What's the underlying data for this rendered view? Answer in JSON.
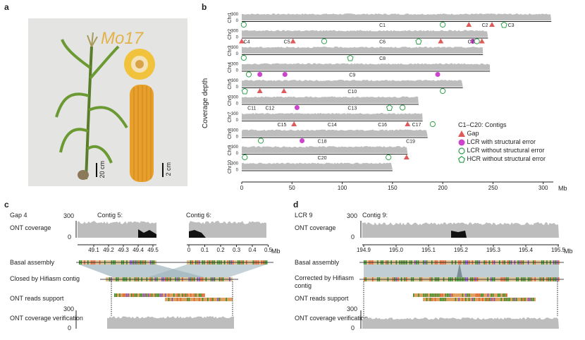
{
  "panels": {
    "a": "a",
    "b": "b",
    "c": "c",
    "d": "d"
  },
  "panel_a": {
    "logo_text": "Mo17",
    "scale_plant": "20 cm",
    "scale_ear": "2 cm"
  },
  "panel_b": {
    "ylabel": "Coverage depth",
    "xunit": "Mb",
    "yticks": [
      "300",
      "0"
    ],
    "xticks": [
      "0",
      "50",
      "100",
      "150",
      "200",
      "250",
      "300"
    ],
    "chromosomes": [
      "Chr1",
      "Chr2",
      "Chr3",
      "Chr4",
      "Chr5",
      "Chr6",
      "Chr7",
      "Chr8",
      "Chr9",
      "Chr10"
    ],
    "contigs": [
      "C1",
      "C2",
      "C3",
      "C4",
      "C5",
      "C6",
      "C7",
      "C8",
      "C9",
      "C10",
      "C11",
      "C12",
      "C13",
      "C14",
      "C15",
      "C16",
      "C17",
      "C18",
      "C19",
      "C20"
    ],
    "legend": {
      "title": "C1–C20: Contigs",
      "items": [
        "Gap",
        "LCR with structural error",
        "LCR without structural error",
        "HCR without structural error"
      ]
    },
    "marker_numbers": [
      "1",
      "2",
      "3",
      "4",
      "5",
      "6",
      "7",
      "8",
      "9",
      "10"
    ]
  },
  "chart_data": {
    "type": "bar",
    "title": "",
    "xlabel": "",
    "ylabel": "Coverage depth",
    "xunit": "Mb",
    "xlim": [
      0,
      310
    ],
    "ylim": [
      0,
      300
    ],
    "categories": [
      "Chr1",
      "Chr2",
      "Chr3",
      "Chr4",
      "Chr5",
      "Chr6",
      "Chr7",
      "Chr8",
      "Chr9",
      "Chr10"
    ],
    "lengths_mb": [
      308,
      245,
      240,
      247,
      220,
      176,
      180,
      185,
      165,
      150
    ]
  },
  "panel_c": {
    "title": "Gap 4",
    "contig_left": "Contig 5:",
    "contig_right": "Contig 6:",
    "ytick_top": "300",
    "ytick_zero": "0",
    "ticks_left": [
      "49.1",
      "49.2",
      "49.3",
      "49.4",
      "49.5"
    ],
    "ticks_right": [
      "0",
      "0.1",
      "0.2",
      "0.3",
      "0.4",
      "0.5"
    ],
    "unit": "Mb",
    "rows": [
      "ONT coverage",
      "Basal assembly",
      "Closed by Hifiasm contig",
      "ONT reads support",
      "ONT coverage verification"
    ]
  },
  "panel_d": {
    "title": "LCR 9",
    "contig": "Contig 9:",
    "ytick_top": "300",
    "ytick_zero": "0",
    "ticks": [
      "194.9",
      "195.0",
      "195.1",
      "195.2",
      "195.3",
      "195.4",
      "195.5"
    ],
    "unit": "Mb",
    "rows": [
      "ONT coverage",
      "Basal assembly",
      "Corrected by Hifiasm contig",
      "ONT reads support",
      "ONT coverage verification"
    ]
  }
}
